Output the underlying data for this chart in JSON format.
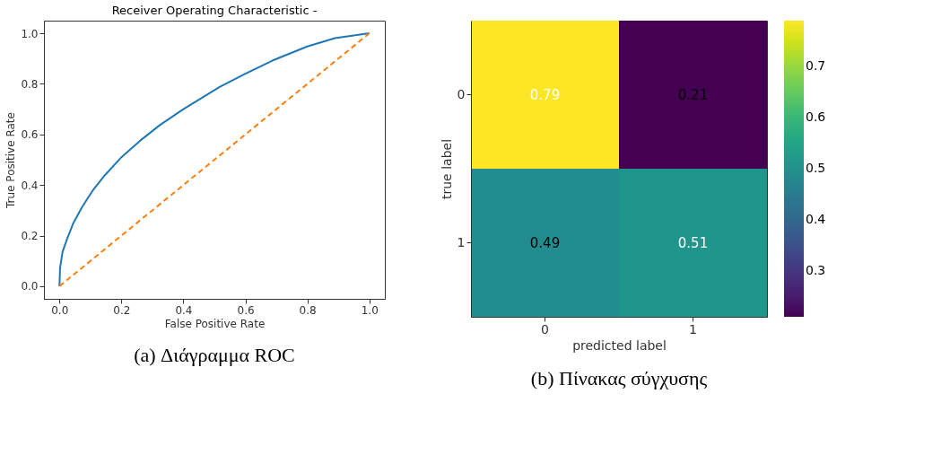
{
  "chart_data": [
    {
      "type": "line",
      "title": "Receiver Operating Characteristic -",
      "xlabel": "False Positive Rate",
      "ylabel": "True Positive Rate",
      "xlim": [
        -0.05,
        1.05
      ],
      "ylim": [
        -0.05,
        1.05
      ],
      "xticks": [
        {
          "value": 0,
          "label": "0.0"
        },
        0.2,
        0.4,
        0.6,
        0.8,
        {
          "value": 1,
          "label": "1.0"
        }
      ],
      "yticks": [
        {
          "value": 0,
          "label": "0.0"
        },
        0.2,
        0.4,
        0.6,
        0.8,
        {
          "value": 1,
          "label": "1.0"
        }
      ],
      "grid": false,
      "legend": false,
      "annotations": [
        "(a) Διάγραμμα ROC"
      ],
      "series": [
        {
          "color": "#1f77b4",
          "line_style": "solid",
          "x": [
            0,
            0.002,
            0.01,
            0.025,
            0.045,
            0.073,
            0.106,
            0.146,
            0.2,
            0.259,
            0.324,
            0.4,
            0.517,
            0.6,
            0.687,
            0.8,
            0.889,
            1
          ],
          "values": [
            0,
            0.073,
            0.136,
            0.188,
            0.25,
            0.313,
            0.376,
            0.438,
            0.51,
            0.574,
            0.637,
            0.7,
            0.788,
            0.84,
            0.892,
            0.948,
            0.981,
            1
          ]
        },
        {
          "color": "#ff7f0e",
          "line_style": "dashed",
          "x": [
            0,
            1
          ],
          "values": [
            0,
            1
          ]
        }
      ]
    },
    {
      "type": "heatmap",
      "xlabel": "predicted label",
      "ylabel": "true label",
      "categories": [
        "0",
        "1"
      ],
      "y_categories": [
        "0",
        "1"
      ],
      "cells": [
        [
          0.79,
          0.21
        ],
        [
          0.49,
          0.51
        ]
      ],
      "data_labels": true,
      "clim": [
        0.21,
        0.79
      ],
      "cticks": [
        0.3,
        0.4,
        0.5,
        0.6,
        0.7
      ],
      "annotations": [
        "(b) Πίνακας σύγχυσης"
      ]
    }
  ]
}
